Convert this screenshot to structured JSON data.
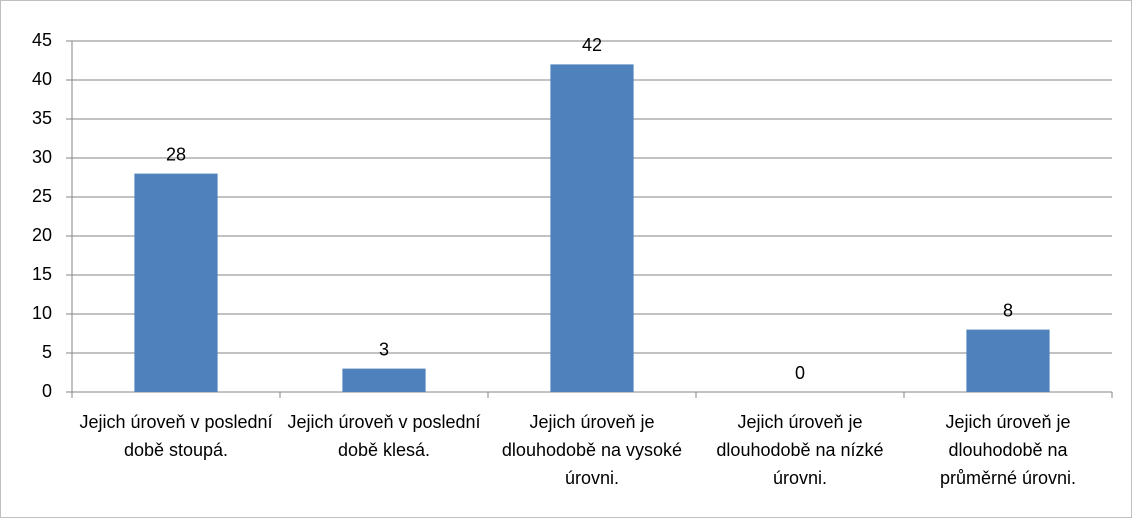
{
  "chart_data": {
    "type": "bar",
    "categories": [
      "Jejich úroveň v poslední době stoupá.",
      "Jejich úroveň v poslední době klesá.",
      "Jejich úroveň je dlouhodobě na vysoké úrovni.",
      "Jejich úroveň je dlouhodobě na nízké úrovni.",
      "Jejich úroveň je dlouhodobě na průměrné úrovni."
    ],
    "values": [
      28,
      3,
      42,
      0,
      8
    ],
    "color": "#4f81bd",
    "ylim": [
      0,
      45
    ],
    "yticks": [
      0,
      5,
      10,
      15,
      20,
      25,
      30,
      35,
      40,
      45
    ],
    "grid": true
  }
}
